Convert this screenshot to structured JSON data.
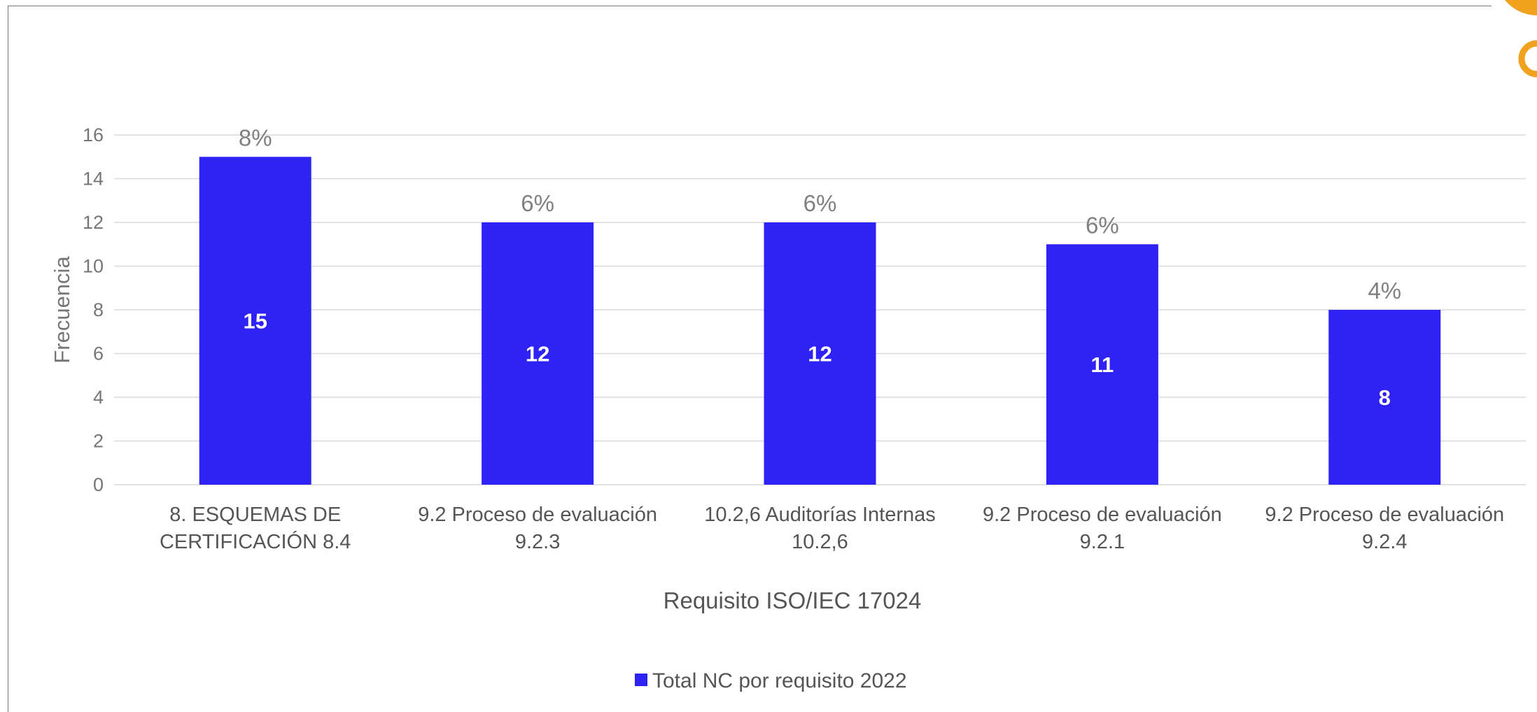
{
  "chart_data": {
    "type": "bar",
    "categories": [
      [
        "8.  ESQUEMAS DE",
        "CERTIFICACIÓN 8.4"
      ],
      [
        "9.2 Proceso de evaluación",
        "9.2.3"
      ],
      [
        "10.2,6 Auditorías Internas",
        "10.2,6"
      ],
      [
        "9.2 Proceso de evaluación",
        "9.2.1"
      ],
      [
        "9.2 Proceso de evaluación",
        "9.2.4"
      ]
    ],
    "series": [
      {
        "name": "Total NC por requisito 2022",
        "values": [
          15,
          12,
          12,
          11,
          8
        ],
        "data_labels": [
          "15",
          "12",
          "12",
          "11",
          "8"
        ],
        "top_labels": [
          "8%",
          "6%",
          "6%",
          "6%",
          "4%"
        ]
      }
    ],
    "xlabel": "Requisito ISO/IEC 17024",
    "ylabel": "Frecuencia",
    "ylim": [
      0,
      16
    ],
    "yticks": [
      0,
      2,
      4,
      6,
      8,
      10,
      12,
      14,
      16
    ],
    "grid": true,
    "legend_position": "bottom",
    "colors": {
      "bar": "#2E22F5",
      "grid": "#d9d9d9",
      "axis_text": "#767676",
      "category_text": "#555555",
      "data_label": "#ffffff",
      "top_label": "#808080",
      "accent": "#F2A11F"
    }
  }
}
